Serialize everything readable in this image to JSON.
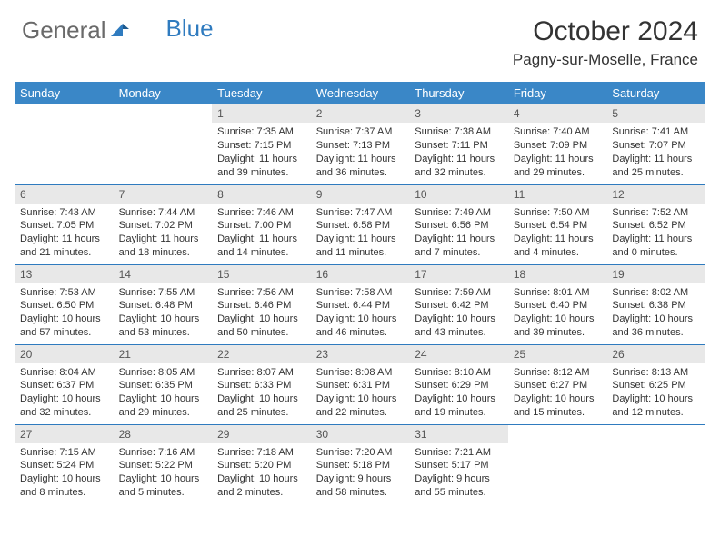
{
  "brand": {
    "part1": "General",
    "part2": "Blue"
  },
  "title": {
    "month": "October 2024",
    "location": "Pagny-sur-Moselle, France"
  },
  "colors": {
    "header_bg": "#3a87c7",
    "border": "#2f7bbf",
    "daynum_bg": "#e8e8e8",
    "text": "#333333",
    "brand_gray": "#6a6a6a",
    "brand_blue": "#2f7bbf"
  },
  "weekdays": [
    "Sunday",
    "Monday",
    "Tuesday",
    "Wednesday",
    "Thursday",
    "Friday",
    "Saturday"
  ],
  "weeks": [
    [
      {
        "n": "",
        "sr": "",
        "ss": "",
        "dl": ""
      },
      {
        "n": "",
        "sr": "",
        "ss": "",
        "dl": ""
      },
      {
        "n": "1",
        "sr": "Sunrise: 7:35 AM",
        "ss": "Sunset: 7:15 PM",
        "dl": "Daylight: 11 hours and 39 minutes."
      },
      {
        "n": "2",
        "sr": "Sunrise: 7:37 AM",
        "ss": "Sunset: 7:13 PM",
        "dl": "Daylight: 11 hours and 36 minutes."
      },
      {
        "n": "3",
        "sr": "Sunrise: 7:38 AM",
        "ss": "Sunset: 7:11 PM",
        "dl": "Daylight: 11 hours and 32 minutes."
      },
      {
        "n": "4",
        "sr": "Sunrise: 7:40 AM",
        "ss": "Sunset: 7:09 PM",
        "dl": "Daylight: 11 hours and 29 minutes."
      },
      {
        "n": "5",
        "sr": "Sunrise: 7:41 AM",
        "ss": "Sunset: 7:07 PM",
        "dl": "Daylight: 11 hours and 25 minutes."
      }
    ],
    [
      {
        "n": "6",
        "sr": "Sunrise: 7:43 AM",
        "ss": "Sunset: 7:05 PM",
        "dl": "Daylight: 11 hours and 21 minutes."
      },
      {
        "n": "7",
        "sr": "Sunrise: 7:44 AM",
        "ss": "Sunset: 7:02 PM",
        "dl": "Daylight: 11 hours and 18 minutes."
      },
      {
        "n": "8",
        "sr": "Sunrise: 7:46 AM",
        "ss": "Sunset: 7:00 PM",
        "dl": "Daylight: 11 hours and 14 minutes."
      },
      {
        "n": "9",
        "sr": "Sunrise: 7:47 AM",
        "ss": "Sunset: 6:58 PM",
        "dl": "Daylight: 11 hours and 11 minutes."
      },
      {
        "n": "10",
        "sr": "Sunrise: 7:49 AM",
        "ss": "Sunset: 6:56 PM",
        "dl": "Daylight: 11 hours and 7 minutes."
      },
      {
        "n": "11",
        "sr": "Sunrise: 7:50 AM",
        "ss": "Sunset: 6:54 PM",
        "dl": "Daylight: 11 hours and 4 minutes."
      },
      {
        "n": "12",
        "sr": "Sunrise: 7:52 AM",
        "ss": "Sunset: 6:52 PM",
        "dl": "Daylight: 11 hours and 0 minutes."
      }
    ],
    [
      {
        "n": "13",
        "sr": "Sunrise: 7:53 AM",
        "ss": "Sunset: 6:50 PM",
        "dl": "Daylight: 10 hours and 57 minutes."
      },
      {
        "n": "14",
        "sr": "Sunrise: 7:55 AM",
        "ss": "Sunset: 6:48 PM",
        "dl": "Daylight: 10 hours and 53 minutes."
      },
      {
        "n": "15",
        "sr": "Sunrise: 7:56 AM",
        "ss": "Sunset: 6:46 PM",
        "dl": "Daylight: 10 hours and 50 minutes."
      },
      {
        "n": "16",
        "sr": "Sunrise: 7:58 AM",
        "ss": "Sunset: 6:44 PM",
        "dl": "Daylight: 10 hours and 46 minutes."
      },
      {
        "n": "17",
        "sr": "Sunrise: 7:59 AM",
        "ss": "Sunset: 6:42 PM",
        "dl": "Daylight: 10 hours and 43 minutes."
      },
      {
        "n": "18",
        "sr": "Sunrise: 8:01 AM",
        "ss": "Sunset: 6:40 PM",
        "dl": "Daylight: 10 hours and 39 minutes."
      },
      {
        "n": "19",
        "sr": "Sunrise: 8:02 AM",
        "ss": "Sunset: 6:38 PM",
        "dl": "Daylight: 10 hours and 36 minutes."
      }
    ],
    [
      {
        "n": "20",
        "sr": "Sunrise: 8:04 AM",
        "ss": "Sunset: 6:37 PM",
        "dl": "Daylight: 10 hours and 32 minutes."
      },
      {
        "n": "21",
        "sr": "Sunrise: 8:05 AM",
        "ss": "Sunset: 6:35 PM",
        "dl": "Daylight: 10 hours and 29 minutes."
      },
      {
        "n": "22",
        "sr": "Sunrise: 8:07 AM",
        "ss": "Sunset: 6:33 PM",
        "dl": "Daylight: 10 hours and 25 minutes."
      },
      {
        "n": "23",
        "sr": "Sunrise: 8:08 AM",
        "ss": "Sunset: 6:31 PM",
        "dl": "Daylight: 10 hours and 22 minutes."
      },
      {
        "n": "24",
        "sr": "Sunrise: 8:10 AM",
        "ss": "Sunset: 6:29 PM",
        "dl": "Daylight: 10 hours and 19 minutes."
      },
      {
        "n": "25",
        "sr": "Sunrise: 8:12 AM",
        "ss": "Sunset: 6:27 PM",
        "dl": "Daylight: 10 hours and 15 minutes."
      },
      {
        "n": "26",
        "sr": "Sunrise: 8:13 AM",
        "ss": "Sunset: 6:25 PM",
        "dl": "Daylight: 10 hours and 12 minutes."
      }
    ],
    [
      {
        "n": "27",
        "sr": "Sunrise: 7:15 AM",
        "ss": "Sunset: 5:24 PM",
        "dl": "Daylight: 10 hours and 8 minutes."
      },
      {
        "n": "28",
        "sr": "Sunrise: 7:16 AM",
        "ss": "Sunset: 5:22 PM",
        "dl": "Daylight: 10 hours and 5 minutes."
      },
      {
        "n": "29",
        "sr": "Sunrise: 7:18 AM",
        "ss": "Sunset: 5:20 PM",
        "dl": "Daylight: 10 hours and 2 minutes."
      },
      {
        "n": "30",
        "sr": "Sunrise: 7:20 AM",
        "ss": "Sunset: 5:18 PM",
        "dl": "Daylight: 9 hours and 58 minutes."
      },
      {
        "n": "31",
        "sr": "Sunrise: 7:21 AM",
        "ss": "Sunset: 5:17 PM",
        "dl": "Daylight: 9 hours and 55 minutes."
      },
      {
        "n": "",
        "sr": "",
        "ss": "",
        "dl": ""
      },
      {
        "n": "",
        "sr": "",
        "ss": "",
        "dl": ""
      }
    ]
  ]
}
